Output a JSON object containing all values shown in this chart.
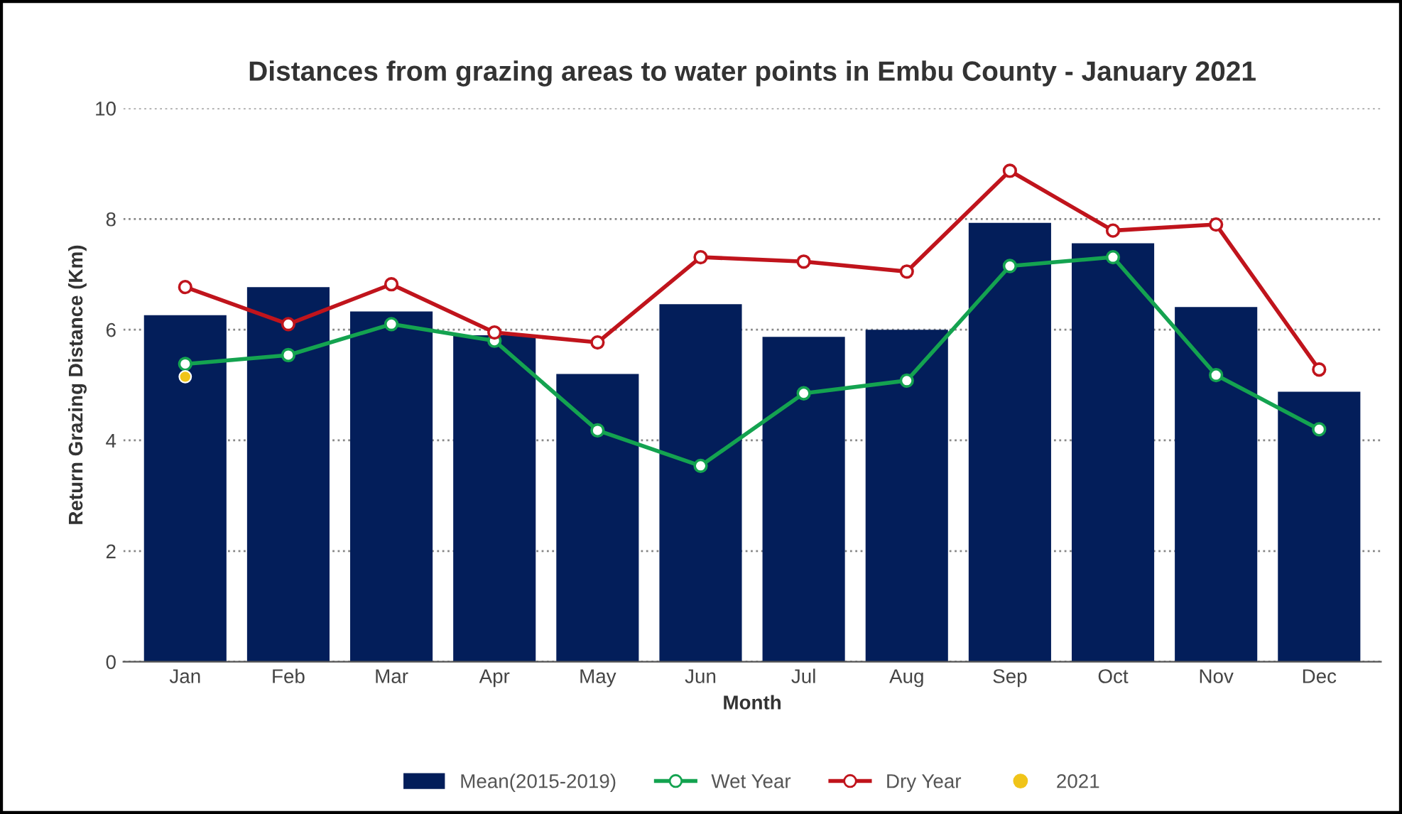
{
  "chart_data": {
    "type": "bar",
    "title": "Distances from grazing areas to water points in Embu County - January 2021",
    "xlabel": "Month",
    "ylabel": "Return Grazing Distance (Km)",
    "categories": [
      "Jan",
      "Feb",
      "Mar",
      "Apr",
      "May",
      "Jun",
      "Jul",
      "Aug",
      "Sep",
      "Oct",
      "Nov",
      "Dec"
    ],
    "series": [
      {
        "name": "Mean(2015-2019)",
        "color": "#031e5a",
        "values": [
          6.26,
          6.77,
          6.33,
          5.9,
          5.2,
          6.46,
          5.87,
          6.0,
          7.93,
          7.56,
          6.41,
          4.88
        ]
      },
      {
        "name": "Wet Year",
        "type": "line",
        "color": "#14a350",
        "values": [
          5.38,
          5.54,
          6.1,
          5.8,
          4.18,
          3.54,
          4.85,
          5.08,
          7.15,
          7.31,
          5.18,
          4.2
        ]
      },
      {
        "name": "Dry Year",
        "type": "line",
        "color": "#c0141c",
        "values": [
          6.77,
          6.1,
          6.82,
          5.95,
          5.77,
          7.31,
          7.23,
          7.05,
          8.87,
          7.79,
          7.9,
          5.28
        ]
      },
      {
        "name": "2021",
        "type": "scatter",
        "color": "#f0c419",
        "values": [
          5.15,
          null,
          null,
          null,
          null,
          null,
          null,
          null,
          null,
          null,
          null,
          null
        ]
      }
    ],
    "ylim": [
      0,
      10
    ],
    "yticks": [
      0,
      2,
      4,
      6,
      8,
      10
    ],
    "grid": "y",
    "legend": "bottom",
    "marker": "circle",
    "line_style": "solid"
  }
}
